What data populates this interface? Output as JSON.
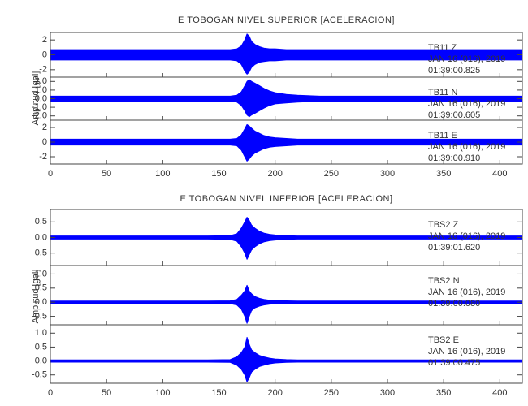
{
  "chart_data": [
    {
      "type": "area",
      "title": "E TOBOGAN NIVEL SUPERIOR [ACELERACION]",
      "ylabel": "Amplitud [gal]",
      "xlim": [
        0,
        420
      ],
      "xticks": [
        0,
        50,
        100,
        150,
        200,
        250,
        300,
        350,
        400
      ],
      "x": [
        0,
        20,
        40,
        60,
        80,
        100,
        120,
        140,
        160,
        166,
        170,
        173,
        175,
        177,
        179,
        182,
        186,
        190,
        195,
        200,
        210,
        220,
        240,
        260,
        280,
        300,
        320,
        340,
        360,
        380,
        400,
        420
      ],
      "panels": [
        {
          "station": "TB11   Z",
          "date": "JAN 16 (016), 2019",
          "time": "01:39:00.825",
          "color": "#0000ff",
          "ylim": [
            -3,
            3
          ],
          "yticks": [
            -2,
            0,
            2
          ],
          "upper": [
            0.7,
            0.7,
            0.7,
            0.7,
            0.7,
            0.7,
            0.7,
            0.7,
            0.7,
            0.8,
            1.2,
            2.0,
            2.8,
            2.5,
            1.8,
            1.4,
            1.1,
            0.9,
            0.8,
            0.8,
            0.7,
            0.7,
            0.7,
            0.7,
            0.7,
            0.7,
            0.7,
            0.7,
            0.7,
            0.7,
            0.7,
            0.7
          ],
          "lower": [
            -0.7,
            -0.7,
            -0.7,
            -0.7,
            -0.7,
            -0.7,
            -0.7,
            -0.7,
            -0.7,
            -0.8,
            -1.3,
            -2.2,
            -2.6,
            -2.3,
            -1.7,
            -1.3,
            -1.0,
            -0.9,
            -0.8,
            -0.8,
            -0.7,
            -0.7,
            -0.7,
            -0.7,
            -0.7,
            -0.7,
            -0.7,
            -0.7,
            -0.7,
            -0.7,
            -0.7,
            -0.7
          ]
        },
        {
          "station": "TB11   N",
          "date": "JAN 16 (016), 2019",
          "time": "01:39:00.605",
          "color": "#0000ff",
          "ylim": [
            -2.5,
            2.5
          ],
          "yticks": [
            {
              "value": -2,
              "label": "-2.0"
            },
            {
              "value": -1,
              "label": "-1.0"
            },
            {
              "value": 0,
              "label": "0.0"
            },
            {
              "value": 1,
              "label": "1.0"
            },
            {
              "value": 2,
              "label": "2.0"
            }
          ],
          "upper": [
            0.3,
            0.3,
            0.3,
            0.3,
            0.3,
            0.3,
            0.3,
            0.3,
            0.3,
            0.4,
            0.8,
            1.5,
            2.0,
            2.2,
            2.0,
            1.8,
            1.5,
            1.2,
            0.9,
            0.7,
            0.5,
            0.4,
            0.3,
            0.3,
            0.3,
            0.3,
            0.3,
            0.3,
            0.3,
            0.3,
            0.3,
            0.3
          ],
          "lower": [
            -0.3,
            -0.3,
            -0.3,
            -0.3,
            -0.3,
            -0.3,
            -0.3,
            -0.3,
            -0.3,
            -0.4,
            -0.8,
            -1.4,
            -1.9,
            -2.1,
            -1.9,
            -1.7,
            -1.4,
            -1.1,
            -0.8,
            -0.6,
            -0.5,
            -0.4,
            -0.3,
            -0.3,
            -0.3,
            -0.3,
            -0.3,
            -0.3,
            -0.3,
            -0.3,
            -0.3,
            -0.3
          ]
        },
        {
          "station": "TB11   E",
          "date": "JAN 16 (016), 2019",
          "time": "01:39:00.910",
          "color": "#0000ff",
          "ylim": [
            -3,
            3
          ],
          "yticks": [
            -2,
            0,
            2
          ],
          "upper": [
            0.4,
            0.4,
            0.4,
            0.4,
            0.4,
            0.4,
            0.4,
            0.4,
            0.4,
            0.5,
            1.0,
            1.8,
            2.4,
            2.2,
            1.9,
            1.5,
            1.2,
            0.9,
            0.7,
            0.6,
            0.5,
            0.4,
            0.4,
            0.4,
            0.4,
            0.4,
            0.4,
            0.4,
            0.4,
            0.4,
            0.4,
            0.4
          ],
          "lower": [
            -0.4,
            -0.4,
            -0.4,
            -0.4,
            -0.4,
            -0.4,
            -0.4,
            -0.4,
            -0.4,
            -0.5,
            -1.1,
            -2.0,
            -2.6,
            -2.3,
            -1.9,
            -1.5,
            -1.2,
            -0.9,
            -0.7,
            -0.6,
            -0.5,
            -0.4,
            -0.4,
            -0.4,
            -0.4,
            -0.4,
            -0.4,
            -0.4,
            -0.4,
            -0.4,
            -0.4,
            -0.4
          ]
        }
      ]
    },
    {
      "type": "area",
      "title": "E TOBOGAN NIVEL INFERIOR [ACELERACION]",
      "ylabel": "Amplitud [gal]",
      "xlim": [
        0,
        420
      ],
      "xticks": [
        0,
        50,
        100,
        150,
        200,
        250,
        300,
        350,
        400
      ],
      "x": [
        0,
        20,
        40,
        60,
        80,
        100,
        120,
        140,
        160,
        166,
        170,
        173,
        175,
        177,
        179,
        182,
        186,
        190,
        195,
        200,
        210,
        220,
        240,
        260,
        280,
        300,
        320,
        340,
        360,
        380,
        400,
        420
      ],
      "panels": [
        {
          "station": "TBS2   Z",
          "date": "JAN 16 (016), 2019",
          "time": "01:39:01.620",
          "color": "#0000ff",
          "ylim": [
            -0.9,
            0.9
          ],
          "yticks": [
            {
              "value": -0.5,
              "label": "-0.5"
            },
            {
              "value": 0,
              "label": "0.0"
            },
            {
              "value": 0.5,
              "label": "0.5"
            }
          ],
          "upper": [
            0.05,
            0.05,
            0.05,
            0.05,
            0.05,
            0.05,
            0.05,
            0.05,
            0.06,
            0.12,
            0.3,
            0.5,
            0.65,
            0.55,
            0.4,
            0.3,
            0.2,
            0.14,
            0.1,
            0.08,
            0.06,
            0.05,
            0.05,
            0.05,
            0.05,
            0.05,
            0.05,
            0.05,
            0.05,
            0.05,
            0.05,
            0.05
          ],
          "lower": [
            -0.05,
            -0.05,
            -0.05,
            -0.05,
            -0.05,
            -0.05,
            -0.05,
            -0.05,
            -0.06,
            -0.12,
            -0.3,
            -0.5,
            -0.7,
            -0.55,
            -0.4,
            -0.3,
            -0.2,
            -0.14,
            -0.1,
            -0.08,
            -0.06,
            -0.05,
            -0.05,
            -0.05,
            -0.05,
            -0.05,
            -0.05,
            -0.05,
            -0.05,
            -0.05,
            -0.05,
            -0.05
          ]
        },
        {
          "station": "TBS2   N",
          "date": "JAN 16 (016), 2019",
          "time": "01:39:00.080",
          "color": "#0000ff",
          "ylim": [
            -0.8,
            1.3
          ],
          "yticks": [
            {
              "value": -0.5,
              "label": "-0.5"
            },
            {
              "value": 0,
              "label": "0.0"
            },
            {
              "value": 0.5,
              "label": "0.5"
            },
            {
              "value": 1,
              "label": "1.0"
            }
          ],
          "upper": [
            0.04,
            0.04,
            0.04,
            0.04,
            0.04,
            0.04,
            0.04,
            0.04,
            0.05,
            0.1,
            0.25,
            0.4,
            0.6,
            0.4,
            0.3,
            0.2,
            0.14,
            0.1,
            0.07,
            0.06,
            0.05,
            0.04,
            0.04,
            0.04,
            0.04,
            0.04,
            0.04,
            0.04,
            0.04,
            0.04,
            0.04,
            0.04
          ],
          "lower": [
            -0.04,
            -0.04,
            -0.04,
            -0.04,
            -0.04,
            -0.04,
            -0.04,
            -0.04,
            -0.05,
            -0.1,
            -0.25,
            -0.5,
            -0.75,
            -0.5,
            -0.3,
            -0.2,
            -0.14,
            -0.1,
            -0.07,
            -0.06,
            -0.05,
            -0.04,
            -0.04,
            -0.04,
            -0.04,
            -0.04,
            -0.04,
            -0.04,
            -0.04,
            -0.04,
            -0.04,
            -0.04
          ]
        },
        {
          "station": "TBS2   E",
          "date": "JAN 16 (016), 2019",
          "time": "01:39:00.475",
          "color": "#0000ff",
          "ylim": [
            -0.8,
            1.3
          ],
          "yticks": [
            {
              "value": -0.5,
              "label": "-0.5"
            },
            {
              "value": 0,
              "label": "0.0"
            },
            {
              "value": 0.5,
              "label": "0.5"
            },
            {
              "value": 1,
              "label": "1.0"
            }
          ],
          "upper": [
            0.04,
            0.04,
            0.04,
            0.04,
            0.04,
            0.04,
            0.04,
            0.04,
            0.05,
            0.15,
            0.3,
            0.5,
            0.85,
            0.6,
            0.4,
            0.3,
            0.2,
            0.15,
            0.1,
            0.07,
            0.05,
            0.04,
            0.04,
            0.04,
            0.04,
            0.04,
            0.04,
            0.04,
            0.04,
            0.04,
            0.04,
            0.04
          ],
          "lower": [
            -0.04,
            -0.04,
            -0.04,
            -0.04,
            -0.04,
            -0.04,
            -0.04,
            -0.04,
            -0.05,
            -0.15,
            -0.3,
            -0.5,
            -0.75,
            -0.6,
            -0.4,
            -0.3,
            -0.2,
            -0.15,
            -0.1,
            -0.07,
            -0.05,
            -0.04,
            -0.04,
            -0.04,
            -0.04,
            -0.04,
            -0.04,
            -0.04,
            -0.04,
            -0.04,
            -0.04,
            -0.04
          ]
        }
      ]
    }
  ]
}
